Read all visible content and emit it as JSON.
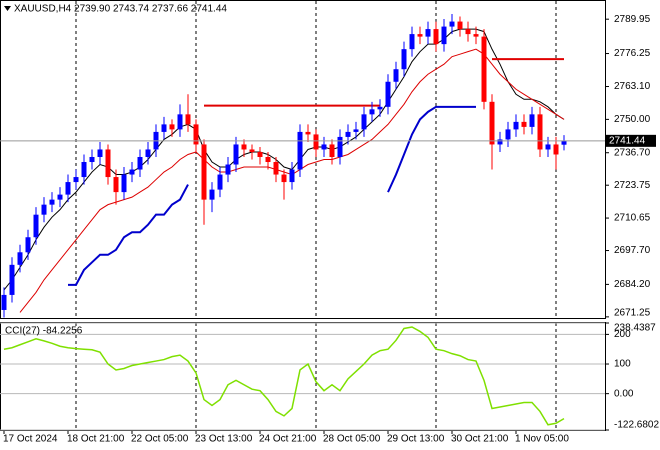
{
  "chart_data": [
    {
      "type": "candlestick",
      "title": "XAUUSD,H4 2739.90 2743.74 2737.66 2741.44",
      "categories": [
        "17 Oct 2024",
        null,
        null,
        null,
        null,
        null,
        null,
        null,
        "18 Oct 21:00",
        null,
        null,
        null,
        null,
        null,
        null,
        null,
        "22 Oct 05:00",
        null,
        null,
        null,
        null,
        null,
        null,
        null,
        "23 Oct 13:00",
        null,
        null,
        null,
        null,
        null,
        null,
        null,
        "24 Oct 21:00",
        null,
        null,
        null,
        null,
        null,
        null,
        null,
        "28 Oct 05:00",
        null,
        null,
        null,
        null,
        null,
        null,
        null,
        "29 Oct 13:00",
        null,
        null,
        null,
        null,
        null,
        null,
        null,
        "30 Oct 21:00",
        null,
        null,
        null,
        null,
        null,
        null,
        null,
        "1 Nov 05:00",
        null,
        null,
        null,
        null,
        null,
        null
      ],
      "open": [
        2674,
        2680,
        2692,
        2697,
        2703,
        2712,
        2716,
        2718,
        2720,
        2725,
        2727,
        2733,
        2735,
        2738,
        2727,
        2721,
        2728,
        2730,
        2735,
        2738,
        2745,
        2748,
        2746,
        2752,
        2748,
        2740,
        2718,
        2722,
        2728,
        2732,
        2740,
        2738,
        2737,
        2735,
        2733,
        2728,
        2725,
        2730,
        2745,
        2744,
        2738,
        2740,
        2735,
        2743,
        2745,
        2746,
        2752,
        2754,
        2755,
        2765,
        2770,
        2778,
        2784,
        2783,
        2786,
        2780,
        2787,
        2789,
        2786,
        2784,
        2783,
        2757,
        2740,
        2742,
        2746,
        2749,
        2747,
        2752,
        2738,
        2740,
        2739.9
      ],
      "high": [
        2683,
        2695,
        2700,
        2706,
        2715,
        2719,
        2721,
        2723,
        2728,
        2730,
        2736,
        2738,
        2741,
        2740,
        2730,
        2731,
        2733,
        2738,
        2741,
        2748,
        2751,
        2750,
        2756,
        2760,
        2750,
        2742,
        2725,
        2731,
        2735,
        2743,
        2742,
        2740,
        2739,
        2737,
        2735,
        2730,
        2733,
        2748,
        2748,
        2746,
        2743,
        2742,
        2746,
        2748,
        2749,
        2755,
        2757,
        2758,
        2768,
        2773,
        2781,
        2787,
        2787,
        2789,
        2789,
        2790,
        2792,
        2791,
        2789,
        2787,
        2786,
        2760,
        2745,
        2749,
        2752,
        2752,
        2755,
        2755,
        2743,
        2743,
        2743.74
      ],
      "low": [
        2671,
        2677,
        2689,
        2694,
        2700,
        2709,
        2713,
        2715,
        2717,
        2722,
        2724,
        2730,
        2732,
        2724,
        2716,
        2718,
        2725,
        2727,
        2732,
        2735,
        2742,
        2743,
        2743,
        2745,
        2737,
        2708,
        2713,
        2719,
        2725,
        2729,
        2735,
        2734,
        2732,
        2730,
        2725,
        2718,
        2722,
        2727,
        2741,
        2735,
        2735,
        2732,
        2732,
        2740,
        2742,
        2743,
        2749,
        2751,
        2752,
        2762,
        2767,
        2775,
        2780,
        2780,
        2777,
        2777,
        2784,
        2783,
        2781,
        2780,
        2754,
        2730,
        2737,
        2739,
        2743,
        2744,
        2744,
        2735,
        2735,
        2730,
        2737.66
      ],
      "close": [
        2680,
        2692,
        2697,
        2703,
        2712,
        2716,
        2718,
        2720,
        2725,
        2727,
        2733,
        2735,
        2738,
        2727,
        2721,
        2728,
        2730,
        2735,
        2738,
        2745,
        2748,
        2746,
        2752,
        2748,
        2740,
        2718,
        2722,
        2728,
        2732,
        2740,
        2738,
        2737,
        2735,
        2733,
        2728,
        2725,
        2730,
        2745,
        2744,
        2738,
        2740,
        2735,
        2743,
        2745,
        2746,
        2752,
        2754,
        2755,
        2765,
        2770,
        2778,
        2784,
        2783,
        2786,
        2780,
        2787,
        2789,
        2786,
        2784,
        2783,
        2757,
        2740,
        2742,
        2746,
        2749,
        2747,
        2752,
        2738,
        2740,
        2736,
        2741.44
      ],
      "up_color": "#0000ff",
      "down_color": "#ff0000",
      "series": [
        {
          "color": "#000000",
          "values": [
            2682,
            2686,
            2691,
            2696,
            2702,
            2707,
            2711,
            2714,
            2718,
            2721,
            2725,
            2729,
            2732,
            2731,
            2728,
            2728,
            2729,
            2731,
            2734,
            2738,
            2742,
            2744,
            2747,
            2748,
            2746,
            2738,
            2733,
            2731,
            2731,
            2734,
            2736,
            2737,
            2737,
            2736,
            2734,
            2731,
            2730,
            2734,
            2738,
            2739,
            2739,
            2738,
            2739,
            2741,
            2743,
            2746,
            2749,
            2752,
            2757,
            2762,
            2767,
            2773,
            2777,
            2780,
            2780,
            2782,
            2785,
            2786,
            2786,
            2786,
            2785,
            2778,
            2772,
            2765,
            2760,
            2758,
            2758,
            2757,
            2755,
            2752,
            2750
          ]
        },
        {
          "color": "#dd0000",
          "values": [
            null,
            null,
            2673,
            2677,
            2681,
            2686,
            2690,
            2694,
            2698,
            2702,
            2706,
            2710,
            2714,
            2716,
            2717,
            2718,
            2719,
            2721,
            2723,
            2726,
            2729,
            2731,
            2734,
            2736,
            2737,
            2734,
            2731,
            2729,
            2729,
            2730,
            2731,
            2731,
            2731,
            2731,
            2730,
            2729,
            2728,
            2730,
            2732,
            2733,
            2734,
            2734,
            2735,
            2736,
            2738,
            2740,
            2742,
            2745,
            2748,
            2752,
            2756,
            2761,
            2765,
            2768,
            2770,
            2772,
            2775,
            2776,
            2777,
            2778,
            2776,
            2772,
            2768,
            2765,
            2762,
            2760,
            2758,
            2756,
            2754,
            2752,
            2750
          ]
        },
        {
          "color": "#0000cc",
          "values": [
            null,
            null,
            null,
            null,
            null,
            null,
            null,
            null,
            2684,
            2684,
            2690,
            2693,
            2696,
            2696,
            2698,
            2703,
            2705,
            2705,
            2708,
            2712,
            2712,
            2716,
            2718,
            2724,
            null,
            null,
            null,
            null,
            null,
            null,
            null,
            null,
            null,
            null,
            null,
            null,
            null,
            null,
            null,
            null,
            null,
            null,
            null,
            null,
            null,
            null,
            null,
            null,
            2721,
            2728,
            2736,
            2744,
            2750,
            2753,
            2755,
            2755,
            2755,
            2755,
            2755,
            2755,
            null,
            null,
            null,
            null,
            null,
            null,
            null,
            null,
            null,
            null,
            null
          ]
        },
        {
          "color": "#e00000",
          "values": [
            null,
            null,
            null,
            null,
            null,
            null,
            null,
            null,
            null,
            null,
            null,
            null,
            null,
            null,
            null,
            null,
            null,
            null,
            null,
            null,
            null,
            null,
            null,
            null,
            null,
            2755.5,
            2755.5,
            2755.5,
            2755.5,
            2755.5,
            2755.5,
            2755.5,
            2755.5,
            2755.5,
            2755.5,
            2755.5,
            2755.5,
            2755.5,
            2755.5,
            2755.5,
            2755.5,
            2755.5,
            2755.5,
            2755.5,
            2755.5,
            2755.5,
            2755.5,
            2755.5,
            null,
            null,
            null,
            null,
            null,
            null,
            null,
            null,
            null,
            null,
            null,
            null,
            null,
            2774,
            2774,
            2774,
            2774,
            2774,
            2774,
            2774,
            2774,
            2774,
            2774
          ]
        }
      ],
      "ylim": [
        2670.8,
        2797.2
      ],
      "yticks": [
        2789.95,
        2776.25,
        {
          "value": 2763.1,
          "label": "2763.10"
        },
        {
          "value": 2750,
          "label": "2750.00"
        },
        {
          "value": 2736.7,
          "label": "2736.70"
        },
        2723.75,
        2710.65,
        {
          "value": 2697.7,
          "label": "2697.70"
        },
        {
          "value": 2684.2,
          "label": "2684.20"
        },
        2671.25
      ]
    },
    {
      "type": "line",
      "title": "CCI(27) -84.2256",
      "series": [
        {
          "color": "#7fe000",
          "values": [
            150,
            155,
            165,
            175,
            185,
            178,
            170,
            160,
            155,
            152,
            150,
            148,
            140,
            100,
            80,
            85,
            95,
            100,
            105,
            110,
            115,
            125,
            130,
            110,
            70,
            -20,
            -40,
            -20,
            30,
            45,
            30,
            15,
            10,
            -20,
            -60,
            -75,
            -50,
            80,
            100,
            40,
            10,
            30,
            10,
            50,
            75,
            100,
            130,
            145,
            150,
            180,
            220,
            225,
            210,
            190,
            150,
            145,
            135,
            128,
            115,
            110,
            45,
            -50,
            -45,
            -40,
            -35,
            -30,
            -30,
            -60,
            -105,
            -100,
            -84.2256
          ]
        }
      ],
      "ylim": [
        -122.6802,
        238.4387
      ],
      "yticks": [
        238.4387,
        200,
        100,
        {
          "value": 0,
          "label": "0.00"
        },
        -122.6802
      ]
    }
  ]
}
